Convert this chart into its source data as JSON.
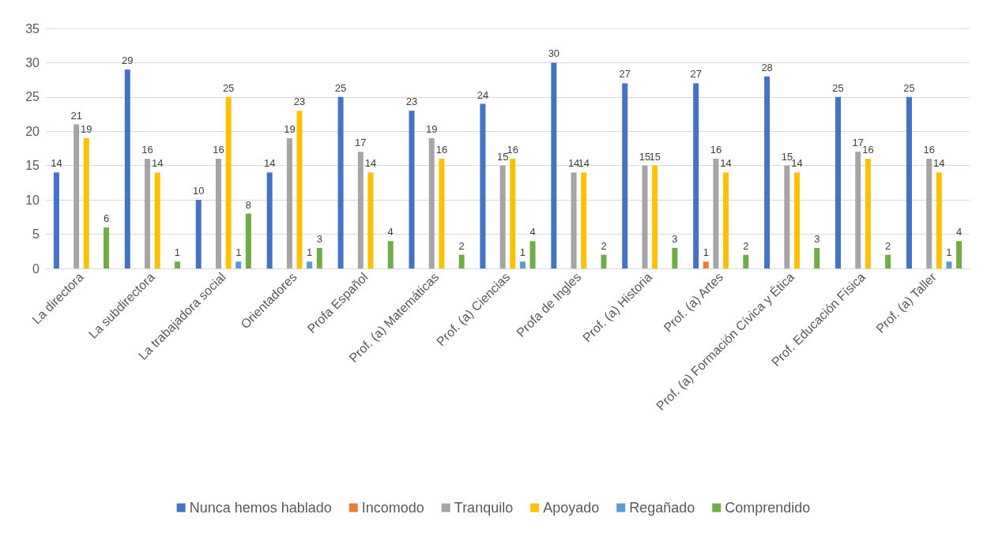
{
  "chart_data": {
    "type": "bar",
    "categories": [
      "La directora",
      "La subdirectora",
      "La trabajadora social",
      "Orientadores",
      "Profa Español",
      "Prof. (a) Matemáticas",
      "Prof. (a) Ciencias",
      "Profa de Ingles",
      "Prof. (a) Historia",
      "Prof. (a) Artes",
      "Prof. (a) Formación Cívica y Ética",
      "Prof. Educación Física",
      "Prof. (a) Taller"
    ],
    "series": [
      {
        "name": "Nunca hemos hablado",
        "color": "#4472c4",
        "values": [
          14,
          29,
          10,
          14,
          25,
          23,
          24,
          30,
          27,
          27,
          28,
          25,
          25
        ]
      },
      {
        "name": "Incomodo",
        "color": "#ed7d31",
        "values": [
          null,
          null,
          null,
          null,
          null,
          null,
          null,
          null,
          null,
          1,
          null,
          null,
          null
        ]
      },
      {
        "name": "Tranquilo",
        "color": "#a5a5a5",
        "values": [
          21,
          16,
          16,
          19,
          17,
          19,
          15,
          14,
          15,
          16,
          15,
          17,
          16
        ]
      },
      {
        "name": "Apoyado",
        "color": "#ffc000",
        "values": [
          19,
          14,
          25,
          23,
          14,
          16,
          16,
          14,
          15,
          14,
          14,
          16,
          14
        ]
      },
      {
        "name": "Regañado",
        "color": "#5b9bd5",
        "values": [
          null,
          null,
          1,
          1,
          null,
          null,
          1,
          null,
          null,
          null,
          null,
          null,
          1
        ]
      },
      {
        "name": "Comprendido",
        "color": "#70ad47",
        "values": [
          6,
          1,
          8,
          3,
          4,
          2,
          4,
          2,
          3,
          2,
          3,
          2,
          4
        ]
      }
    ],
    "ylim": [
      0,
      35
    ],
    "yticks": [
      0,
      5,
      10,
      15,
      20,
      25,
      30,
      35
    ],
    "grid": "y",
    "legend": "bottom",
    "data_labels": true
  }
}
